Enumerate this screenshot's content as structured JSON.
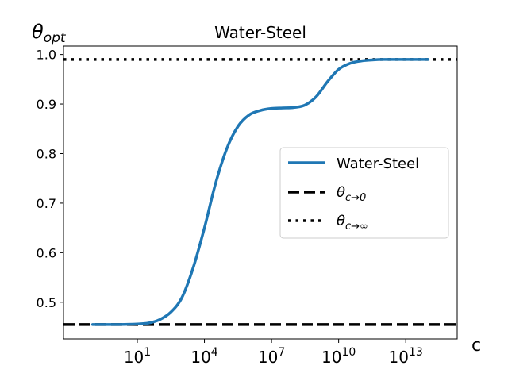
{
  "chart_data": {
    "type": "line",
    "title": "Water-Steel",
    "xlabel": "c",
    "ylabel_base": "θ",
    "ylabel_sub": "opt",
    "xscale": "log",
    "xlim_log10": [
      -2.3,
      15.3
    ],
    "ylim": [
      0.426,
      1.017
    ],
    "xticks": [
      {
        "exp": 1,
        "base": "10",
        "sup": "1"
      },
      {
        "exp": 4,
        "base": "10",
        "sup": "4"
      },
      {
        "exp": 7,
        "base": "10",
        "sup": "7"
      },
      {
        "exp": 10,
        "base": "10",
        "sup": "10"
      },
      {
        "exp": 13,
        "base": "10",
        "sup": "13"
      }
    ],
    "yticks": [
      {
        "value": 0.5,
        "label": "0.5"
      },
      {
        "value": 0.6,
        "label": "0.6"
      },
      {
        "value": 0.7,
        "label": "0.7"
      },
      {
        "value": 0.8,
        "label": "0.8"
      },
      {
        "value": 0.9,
        "label": "0.9"
      },
      {
        "value": 1.0,
        "label": "1.0"
      }
    ],
    "series": [
      {
        "name": "Water-Steel",
        "style": "solid",
        "color": "#1f77b4",
        "x_log10": [
          -1.0,
          0.0,
          1.0,
          1.5,
          2.0,
          2.5,
          3.0,
          3.5,
          4.0,
          4.5,
          5.0,
          5.5,
          6.0,
          6.5,
          7.0,
          7.5,
          8.0,
          8.5,
          9.0,
          9.5,
          10.0,
          10.5,
          11.0,
          11.5,
          12.0,
          13.0,
          14.0
        ],
        "y": [
          0.455,
          0.455,
          0.456,
          0.458,
          0.465,
          0.48,
          0.51,
          0.57,
          0.65,
          0.74,
          0.81,
          0.855,
          0.878,
          0.887,
          0.891,
          0.892,
          0.893,
          0.898,
          0.915,
          0.945,
          0.97,
          0.982,
          0.987,
          0.989,
          0.99,
          0.99,
          0.99
        ]
      },
      {
        "name": "θc→0",
        "label_base": "θ",
        "label_sub": "c→0",
        "style": "dashed",
        "color": "#000000",
        "y_const": 0.455
      },
      {
        "name": "θc→∞",
        "label_base": "θ",
        "label_sub": "c→∞",
        "style": "dotted",
        "color": "#000000",
        "y_const": 0.99
      }
    ],
    "legend_position": "center-right"
  }
}
